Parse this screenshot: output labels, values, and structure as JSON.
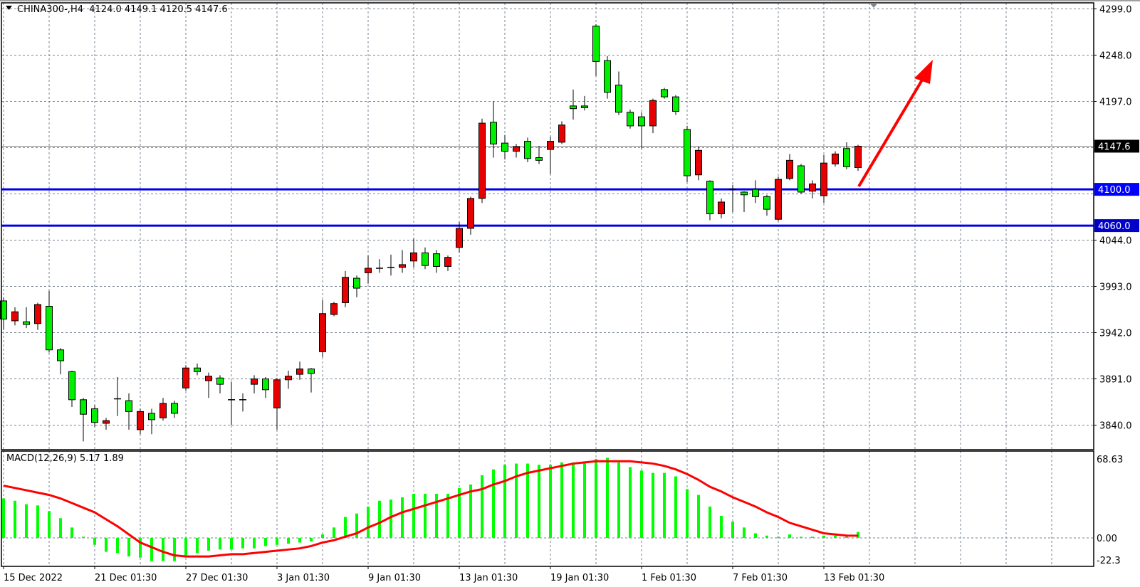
{
  "header": {
    "symbol": "CHINA300-,H4",
    "ohlc": "4124.0 4149.1 4120.5 4147.6"
  },
  "indicator": {
    "label": "MACD(12,26,9) 5.17 1.89"
  },
  "colors": {
    "bull": "#e60000",
    "bear": "#00ee00",
    "levels": "#0000e6",
    "macd_hist": "#00ff00",
    "macd_signal": "#ff0000",
    "arrow": "#ff0000",
    "grid": "#7a8593"
  },
  "chart_data": [
    {
      "type": "candlestick",
      "symbol": "CHINA300-",
      "timeframe": "H4",
      "ylim": [
        3840.0,
        4299.0
      ],
      "y_ticks": [
        "4299.0",
        "4248.0",
        "4197.0",
        "4044.0",
        "3993.0",
        "3942.0",
        "3891.0",
        "3840.0"
      ],
      "x_tick_labels": [
        "15 Dec 2022",
        "21 Dec 01:30",
        "27 Dec 01:30",
        "3 Jan 01:30",
        "9 Jan 01:30",
        "13 Jan 01:30",
        "19 Jan 01:30",
        "1 Feb 01:30",
        "7 Feb 01:30",
        "13 Feb 01:30"
      ],
      "current_price": "4147.6",
      "horizontal_levels": [
        "4100.0",
        "4060.0"
      ],
      "annotation": "red arrow pointing up",
      "grid": true,
      "ohlc": [
        [
          3977,
          3981,
          3945,
          3957
        ],
        [
          3955,
          3970,
          3950,
          3965
        ],
        [
          3954,
          3970,
          3947,
          3951
        ],
        [
          3952,
          3975,
          3945,
          3973
        ],
        [
          3971,
          3988,
          3920,
          3923
        ],
        [
          3923,
          3925,
          3896,
          3911
        ],
        [
          3899,
          3900,
          3860,
          3868
        ],
        [
          3868,
          3870,
          3822,
          3852
        ],
        [
          3858,
          3862,
          3838,
          3843
        ],
        [
          3842,
          3848,
          3835,
          3845
        ],
        [
          3869,
          3893,
          3850,
          3869
        ],
        [
          3867,
          3875,
          3835,
          3855
        ],
        [
          3835,
          3858,
          3830,
          3855
        ],
        [
          3853,
          3858,
          3830,
          3846
        ],
        [
          3848,
          3870,
          3845,
          3864
        ],
        [
          3864,
          3867,
          3848,
          3853
        ],
        [
          3881,
          3906,
          3878,
          3903
        ],
        [
          3903,
          3908,
          3895,
          3899
        ],
        [
          3889,
          3898,
          3870,
          3894
        ],
        [
          3892,
          3895,
          3875,
          3885
        ],
        [
          3868,
          3888,
          3840,
          3868
        ],
        [
          3868,
          3875,
          3855,
          3868
        ],
        [
          3885,
          3895,
          3875,
          3891
        ],
        [
          3891,
          3893,
          3870,
          3879
        ],
        [
          3859,
          3892,
          3835,
          3890
        ],
        [
          3890,
          3900,
          3880,
          3894
        ],
        [
          3896,
          3910,
          3890,
          3902
        ],
        [
          3902,
          3903,
          3876,
          3897
        ],
        [
          3921,
          3978,
          3915,
          3963
        ],
        [
          3962,
          3976,
          3960,
          3974
        ],
        [
          3975,
          4010,
          3970,
          4003
        ],
        [
          4002,
          4005,
          3981,
          3991
        ],
        [
          4008,
          4027,
          3996,
          4013
        ],
        [
          4013,
          4023,
          4008,
          4013
        ],
        [
          4014,
          4028,
          4005,
          4014
        ],
        [
          4014,
          4033,
          4008,
          4017
        ],
        [
          4021,
          4046,
          4014,
          4030
        ],
        [
          4030,
          4036,
          4012,
          4016
        ],
        [
          4029,
          4033,
          4008,
          4015
        ],
        [
          4015,
          4027,
          4010,
          4025
        ],
        [
          4036,
          4064,
          4030,
          4057
        ],
        [
          4057,
          4092,
          4050,
          4090
        ],
        [
          4090,
          4178,
          4085,
          4173
        ],
        [
          4174,
          4197,
          4135,
          4150
        ],
        [
          4151,
          4160,
          4133,
          4142
        ],
        [
          4142,
          4150,
          4135,
          4147
        ],
        [
          4153,
          4157,
          4130,
          4134
        ],
        [
          4135,
          4148,
          4128,
          4132
        ],
        [
          4144,
          4158,
          4117,
          4153
        ],
        [
          4152,
          4175,
          4150,
          4171
        ],
        [
          4192,
          4210,
          4177,
          4189
        ],
        [
          4192,
          4203,
          4187,
          4190
        ],
        [
          4280,
          4282,
          4225,
          4241
        ],
        [
          4242,
          4247,
          4200,
          4207
        ],
        [
          4215,
          4230,
          4182,
          4185
        ],
        [
          4185,
          4188,
          4167,
          4170
        ],
        [
          4180,
          4185,
          4145,
          4170
        ],
        [
          4170,
          4200,
          4162,
          4198
        ],
        [
          4210,
          4212,
          4200,
          4202
        ],
        [
          4202,
          4204,
          4182,
          4186
        ],
        [
          4166,
          4170,
          4108,
          4115
        ],
        [
          4116,
          4147,
          4110,
          4143
        ],
        [
          4109,
          4110,
          4066,
          4073
        ],
        [
          4073,
          4090,
          4068,
          4086
        ],
        [
          4100,
          4105,
          4075,
          4100
        ],
        [
          4097,
          4098,
          4075,
          4094
        ],
        [
          4100,
          4110,
          4085,
          4092
        ],
        [
          4092,
          4094,
          4071,
          4078
        ],
        [
          4067,
          4114,
          4065,
          4111
        ],
        [
          4112,
          4139,
          4110,
          4132
        ],
        [
          4126,
          4128,
          4095,
          4097
        ],
        [
          4098,
          4110,
          4090,
          4106
        ],
        [
          4093,
          4138,
          4085,
          4129
        ],
        [
          4128,
          4142,
          4125,
          4139
        ],
        [
          4145,
          4152,
          4122,
          4125
        ],
        [
          4124.0,
          4149.1,
          4120.5,
          4147.6
        ]
      ]
    },
    {
      "type": "bar+line",
      "name": "MACD(12,26,9)",
      "ylim": [
        -22.3,
        68.63
      ],
      "y_ticks": [
        "68.63",
        "0.00",
        "-22.3"
      ],
      "histogram": [
        34,
        32,
        29,
        28,
        23,
        17,
        9,
        1,
        -6,
        -12,
        -13,
        -16,
        -17,
        -20,
        -20,
        -20,
        -15,
        -13,
        -11,
        -10,
        -10,
        -9,
        -9,
        -7,
        -6,
        -5,
        -4,
        -3,
        3,
        9,
        18,
        21,
        27,
        32,
        33,
        35,
        38,
        38,
        38,
        38,
        43,
        46,
        54,
        59,
        63,
        64,
        64,
        63,
        63,
        65,
        65,
        65,
        68,
        69,
        65,
        61,
        58,
        56,
        56,
        53,
        42,
        37,
        27,
        19,
        14,
        9,
        4,
        2,
        1,
        3,
        1,
        1,
        2,
        2,
        1,
        5.17
      ],
      "signal": [
        45,
        43,
        41,
        39,
        37,
        34,
        30,
        26,
        22,
        16,
        10,
        3,
        -4,
        -8,
        -12,
        -15,
        -16,
        -16,
        -16,
        -15,
        -14,
        -14,
        -13,
        -12,
        -11,
        -10,
        -9,
        -7,
        -4,
        -2,
        1,
        4,
        9,
        13,
        18,
        22,
        25,
        28,
        31,
        34,
        37,
        40,
        42,
        46,
        49,
        53,
        56,
        58,
        60,
        62,
        64,
        65,
        66,
        66,
        66,
        66,
        65,
        64,
        62,
        59,
        55,
        50,
        44,
        40,
        35,
        31,
        27,
        22,
        18,
        13,
        10,
        7,
        4,
        3,
        2,
        1.89
      ]
    }
  ]
}
